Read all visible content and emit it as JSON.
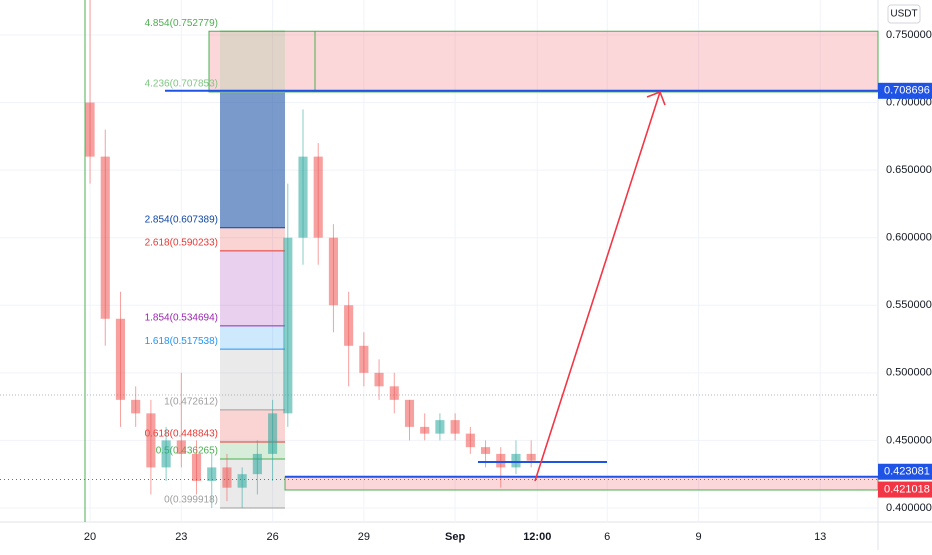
{
  "chart_data": {
    "type": "candlestick",
    "unit": "USDT",
    "x": [
      0,
      0.5,
      1,
      1.5,
      2,
      2.5,
      3,
      3.5,
      4,
      4.5,
      5,
      5.5,
      6,
      6.5,
      7,
      7.5,
      8,
      8.5,
      9,
      9.5,
      10,
      10.5,
      11,
      11.5,
      12,
      12.5,
      13,
      13.5,
      14,
      14.5
    ],
    "open": [
      0.7,
      0.66,
      0.54,
      0.48,
      0.47,
      0.43,
      0.45,
      0.44,
      0.42,
      0.43,
      0.415,
      0.425,
      0.44,
      0.47,
      0.6,
      0.66,
      0.6,
      0.55,
      0.52,
      0.5,
      0.49,
      0.48,
      0.46,
      0.455,
      0.465,
      0.455,
      0.445,
      0.44,
      0.43,
      0.44
    ],
    "high": [
      0.776,
      0.68,
      0.56,
      0.49,
      0.48,
      0.46,
      0.5,
      0.45,
      0.44,
      0.44,
      0.43,
      0.45,
      0.48,
      0.64,
      0.695,
      0.67,
      0.61,
      0.56,
      0.53,
      0.51,
      0.5,
      0.48,
      0.47,
      0.47,
      0.47,
      0.46,
      0.45,
      0.445,
      0.45,
      0.45
    ],
    "low": [
      0.64,
      0.52,
      0.46,
      0.46,
      0.41,
      0.42,
      0.43,
      0.41,
      0.4,
      0.405,
      0.4,
      0.41,
      0.42,
      0.46,
      0.58,
      0.58,
      0.53,
      0.49,
      0.49,
      0.48,
      0.47,
      0.45,
      0.45,
      0.45,
      0.45,
      0.44,
      0.43,
      0.415,
      0.425,
      0.43
    ],
    "close": [
      0.66,
      0.54,
      0.48,
      0.47,
      0.43,
      0.45,
      0.44,
      0.42,
      0.43,
      0.415,
      0.425,
      0.44,
      0.47,
      0.6,
      0.66,
      0.6,
      0.55,
      0.52,
      0.5,
      0.49,
      0.48,
      0.46,
      0.455,
      0.465,
      0.455,
      0.445,
      0.44,
      0.43,
      0.44,
      0.435
    ],
    "up_color": "#26a69a",
    "down_color": "#ef5350",
    "xlim": [
      -2.96,
      25.9
    ],
    "xticks": [
      {
        "value": 0,
        "label": "20"
      },
      {
        "value": 3,
        "label": "23"
      },
      {
        "value": 6,
        "label": "26"
      },
      {
        "value": 9,
        "label": "29"
      },
      {
        "value": 12,
        "label": "Sep"
      },
      {
        "value": 14.7,
        "label": "12:00"
      },
      {
        "value": 17,
        "label": "6"
      },
      {
        "value": 20,
        "label": "9"
      },
      {
        "value": 24,
        "label": "13"
      }
    ],
    "ylim": [
      0.3896,
      0.7759
    ],
    "yticks": [
      {
        "value": 0.4,
        "label": "0.400000"
      },
      {
        "value": 0.45,
        "label": "0.450000"
      },
      {
        "value": 0.5,
        "label": "0.500000"
      },
      {
        "value": 0.55,
        "label": "0.550000"
      },
      {
        "value": 0.6,
        "label": "0.600000"
      },
      {
        "value": 0.65,
        "label": "0.650000"
      },
      {
        "value": 0.7,
        "label": "0.700000"
      },
      {
        "value": 0.75,
        "label": "0.750000"
      }
    ],
    "grid": true,
    "fib_levels": [
      {
        "value": 0.752779,
        "label": "4.854(0.752779)",
        "color": "#4caf50"
      },
      {
        "value": 0.707853,
        "label": "4.236(0.707853)",
        "color": "#81c784"
      },
      {
        "value": 0.607389,
        "label": "2.854(0.607389)",
        "color": "#0d47a1"
      },
      {
        "value": 0.590233,
        "label": "2.618(0.590233)",
        "color": "#e53935"
      },
      {
        "value": 0.534694,
        "label": "1.854(0.534694)",
        "color": "#9c27b0"
      },
      {
        "value": 0.517538,
        "label": "1.618(0.517538)",
        "color": "#2196f3"
      },
      {
        "value": 0.472612,
        "label": "1(0.472612)",
        "color": "#9e9e9e"
      },
      {
        "value": 0.448843,
        "label": "0.618(0.448843)",
        "color": "#e53935"
      },
      {
        "value": 0.436265,
        "label": "0.5(0.436265)",
        "color": "#4caf50"
      },
      {
        "value": 0.399918,
        "label": "0(0.399918)",
        "color": "#9e9e9e"
      }
    ],
    "price_lines": [
      {
        "value": 0.708696,
        "label": "0.708696",
        "color": "#1e53e5"
      },
      {
        "value": 0.423081,
        "label": "0.423081",
        "color": "#1e53e5"
      },
      {
        "value": 0.421018,
        "label": "0.421018",
        "color": "#f23645"
      }
    ]
  }
}
